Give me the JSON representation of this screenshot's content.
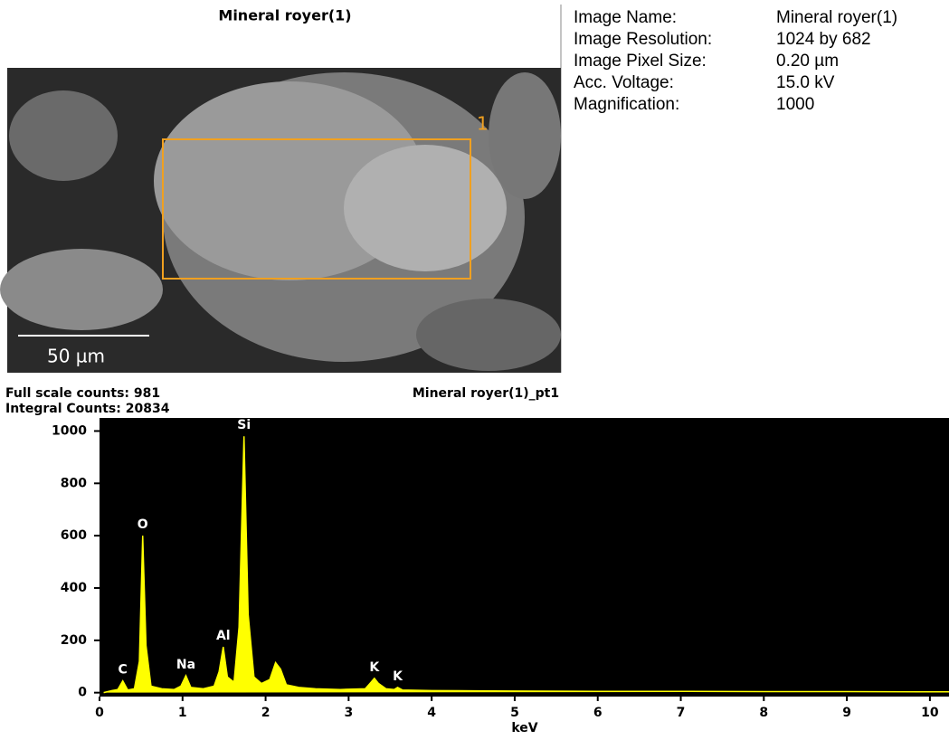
{
  "image_panel": {
    "title": "Mineral royer(1)",
    "roi_label": "1",
    "scale_bar": "50 µm"
  },
  "info": {
    "rows": [
      [
        "Image Name:",
        "Mineral royer(1)"
      ],
      [
        "Image Resolution:",
        "1024 by 682"
      ],
      [
        "Image Pixel Size:",
        "0.20 µm"
      ],
      [
        "Acc. Voltage:",
        "15.0 kV"
      ],
      [
        "Magnification:",
        "1000"
      ]
    ]
  },
  "chart_data": {
    "type": "line",
    "title": "Mineral royer(1)_pt1",
    "subtitles": [
      "Full scale counts: 981",
      "Integral Counts: 20834"
    ],
    "x_label": "keV",
    "color": "#ffff00",
    "background": "#000000",
    "x": [
      0.05,
      0.15,
      0.22,
      0.28,
      0.34,
      0.42,
      0.48,
      0.52,
      0.56,
      0.62,
      0.75,
      0.9,
      0.98,
      1.04,
      1.1,
      1.25,
      1.38,
      1.44,
      1.49,
      1.54,
      1.62,
      1.68,
      1.74,
      1.79,
      1.86,
      1.95,
      2.05,
      2.12,
      2.18,
      2.25,
      2.4,
      2.6,
      2.9,
      3.2,
      3.27,
      3.31,
      3.36,
      3.45,
      3.55,
      3.59,
      3.65,
      4.0,
      4.5,
      5.0,
      6.0,
      7.0,
      8.0,
      9.0,
      10.0,
      10.23
    ],
    "values": [
      0,
      8,
      12,
      45,
      10,
      15,
      120,
      600,
      180,
      25,
      15,
      12,
      25,
      65,
      20,
      15,
      25,
      80,
      175,
      60,
      40,
      250,
      980,
      300,
      60,
      35,
      50,
      115,
      90,
      30,
      20,
      15,
      12,
      15,
      40,
      55,
      35,
      15,
      12,
      20,
      10,
      8,
      7,
      6,
      5,
      5,
      4,
      4,
      3,
      3
    ],
    "annotations": [
      {
        "text": "C",
        "x": 0.28,
        "y": 45
      },
      {
        "text": "O",
        "x": 0.52,
        "y": 600
      },
      {
        "text": "Na",
        "x": 1.04,
        "y": 65
      },
      {
        "text": "Al",
        "x": 1.49,
        "y": 175
      },
      {
        "text": "Si",
        "x": 1.74,
        "y": 980
      },
      {
        "text": "K",
        "x": 3.31,
        "y": 55
      },
      {
        "text": "K",
        "x": 3.59,
        "y": 20
      }
    ],
    "xlim": [
      0,
      10.23
    ],
    "ylim": [
      -15,
      1050
    ],
    "xticks": [
      0,
      1,
      2,
      3,
      4,
      5,
      6,
      7,
      8,
      9,
      10
    ],
    "yticks": [
      0,
      200,
      400,
      600,
      800,
      1000
    ]
  }
}
